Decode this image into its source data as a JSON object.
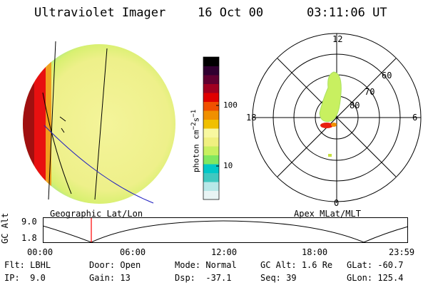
{
  "header": {
    "instrument": "Ultraviolet Imager",
    "date": "16 Oct 00",
    "time": "03:11:06 UT"
  },
  "colorbar": {
    "unit_label": "photon cm",
    "unit_exp1": "−2",
    "unit_mid": "s",
    "unit_exp2": "−1",
    "tick_100": "100",
    "tick_10": "10",
    "scale": "log",
    "colors": [
      "#e8f4f4",
      "#b8e8e8",
      "#40c8c0",
      "#00c8c8",
      "#80e860",
      "#c8f060",
      "#f0f080",
      "#f8f8a0",
      "#f0c000",
      "#f09000",
      "#f05000",
      "#e00000",
      "#a00020",
      "#600030",
      "#300030",
      "#000000"
    ]
  },
  "geo_panel": {
    "label": "Geographic Lat/Lon"
  },
  "polar_panel": {
    "label": "Apex MLat/MLT",
    "mlt_12": "12",
    "mlt_18": "18",
    "mlt_6": "6",
    "mlt_0": "0",
    "lat_60": "60",
    "lat_70": "70",
    "lat_80": "80"
  },
  "altitude_plot": {
    "ylabel": "GC Alt",
    "ytick_top": "9.0",
    "ytick_bottom": "1.8",
    "xticks": [
      "00:00",
      "06:00",
      "12:00",
      "18:00",
      "23:59"
    ],
    "current_time_marker_color": "#ff0000"
  },
  "status": {
    "flt_label": "Flt:",
    "flt_value": "LBHL",
    "ip_label": "IP:",
    "ip_value": "9.0",
    "door_label": "Door:",
    "door_value": "Open",
    "gain_label": "Gain:",
    "gain_value": "13",
    "mode_label": "Mode:",
    "mode_value": "Normal",
    "dsp_label": "Dsp:",
    "dsp_value": "-37.1",
    "gcalt_label": "GC Alt:",
    "gcalt_value": "1.6 Re",
    "seq_label": "Seq:",
    "seq_value": "39",
    "glat_label": "GLat:",
    "glat_value": "-60.7",
    "glon_label": "GLon:",
    "glon_value": "125.4"
  }
}
